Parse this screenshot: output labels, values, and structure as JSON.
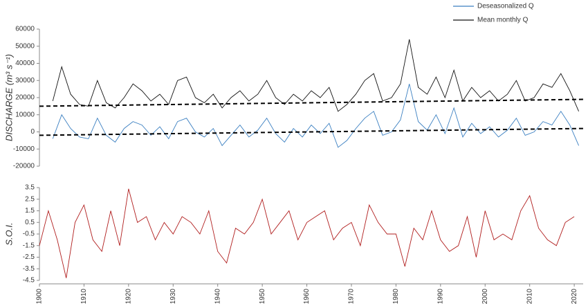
{
  "chart_data": [
    {
      "type": "line",
      "ylabel": "DISCHARGE (m³ s⁻¹)",
      "legend": "top-right",
      "xlim": [
        1900,
        2022
      ],
      "ylim": [
        -20000,
        60000
      ],
      "yticks": [
        -20000,
        -10000,
        0,
        10000,
        20000,
        30000,
        40000,
        50000,
        60000
      ],
      "x": [
        1903,
        1905,
        1907,
        1909,
        1911,
        1913,
        1915,
        1917,
        1919,
        1921,
        1923,
        1925,
        1927,
        1929,
        1931,
        1933,
        1935,
        1937,
        1939,
        1941,
        1943,
        1945,
        1947,
        1949,
        1951,
        1953,
        1955,
        1957,
        1959,
        1961,
        1963,
        1965,
        1967,
        1969,
        1971,
        1973,
        1975,
        1977,
        1979,
        1981,
        1983,
        1985,
        1987,
        1989,
        1991,
        1993,
        1995,
        1997,
        1999,
        2001,
        2003,
        2005,
        2007,
        2009,
        2011,
        2013,
        2015,
        2017,
        2019,
        2021
      ],
      "series": [
        {
          "name": "Deseasonalized Q",
          "color": "#3a7fc1",
          "values": [
            -4000,
            10000,
            2000,
            -3000,
            -4000,
            8000,
            -2000,
            -6000,
            2000,
            6000,
            4000,
            -2000,
            3000,
            -4000,
            6000,
            8000,
            0,
            -3000,
            2000,
            -8000,
            -2000,
            4000,
            -3000,
            1000,
            8000,
            -1000,
            -6000,
            2000,
            -3000,
            4000,
            -1000,
            5000,
            -9000,
            -5000,
            2000,
            8000,
            12000,
            -2000,
            0,
            7000,
            28000,
            6000,
            1000,
            10000,
            -1000,
            14000,
            -3000,
            5000,
            -1000,
            3000,
            -3000,
            1000,
            8000,
            -2000,
            0,
            6000,
            4000,
            12000,
            4000,
            -8000
          ]
        },
        {
          "name": "Mean monthly Q",
          "color": "#111111",
          "values": [
            18000,
            38000,
            22000,
            16000,
            15000,
            30000,
            17000,
            14000,
            20000,
            28000,
            24000,
            18000,
            22000,
            16000,
            30000,
            32000,
            20000,
            17000,
            22000,
            14000,
            20000,
            24000,
            18000,
            22000,
            30000,
            20000,
            16000,
            22000,
            18000,
            24000,
            20000,
            26000,
            12000,
            16000,
            22000,
            30000,
            34000,
            18000,
            20000,
            28000,
            54000,
            26000,
            22000,
            32000,
            20000,
            36000,
            18000,
            26000,
            20000,
            24000,
            18000,
            22000,
            30000,
            18000,
            20000,
            28000,
            26000,
            34000,
            24000,
            12000
          ]
        }
      ],
      "trend_lines": [
        {
          "x": [
            1900,
            2022
          ],
          "values": [
            15000,
            19000
          ]
        },
        {
          "x": [
            1900,
            2022
          ],
          "values": [
            -2000,
            2000
          ]
        }
      ]
    },
    {
      "type": "line",
      "ylabel": "S.O.I.",
      "xlim": [
        1900,
        2022
      ],
      "ylim": [
        -4.5,
        3.5
      ],
      "yticks": [
        -4.5,
        -3.5,
        -2.5,
        -1.5,
        -0.5,
        0.5,
        1.5,
        2.5,
        3.5
      ],
      "xticks": [
        1900,
        1910,
        1920,
        1930,
        1940,
        1950,
        1960,
        1970,
        1980,
        1990,
        2000,
        2010,
        2020
      ],
      "x": [
        1900,
        1902,
        1904,
        1906,
        1908,
        1910,
        1912,
        1914,
        1916,
        1918,
        1920,
        1922,
        1924,
        1926,
        1928,
        1930,
        1932,
        1934,
        1936,
        1938,
        1940,
        1942,
        1944,
        1946,
        1948,
        1950,
        1952,
        1954,
        1956,
        1958,
        1960,
        1962,
        1964,
        1966,
        1968,
        1970,
        1972,
        1974,
        1976,
        1978,
        1980,
        1982,
        1984,
        1986,
        1988,
        1990,
        1992,
        1994,
        1996,
        1998,
        2000,
        2002,
        2004,
        2006,
        2008,
        2010,
        2012,
        2014,
        2016,
        2018,
        2020
      ],
      "series": [
        {
          "color": "#b01c1c",
          "values": [
            -1.5,
            1.5,
            -1,
            -4.3,
            0.5,
            2,
            -1,
            -2,
            1.5,
            -1.5,
            3.4,
            0.5,
            1,
            -1,
            0.5,
            -0.5,
            1,
            0.5,
            -0.5,
            1.5,
            -2,
            -3,
            0,
            -0.5,
            0.5,
            2.5,
            -0.5,
            0.5,
            1.5,
            -1,
            0.5,
            1,
            1.5,
            -1,
            0,
            0.5,
            -1.5,
            2,
            0.5,
            -0.5,
            -0.5,
            -3.3,
            0,
            -1,
            1.5,
            -1,
            -2,
            -1.5,
            1,
            -2.5,
            1.5,
            -1,
            -0.5,
            -1,
            1.5,
            2.8,
            0,
            -1,
            -1.5,
            0.5,
            1
          ]
        }
      ]
    }
  ]
}
